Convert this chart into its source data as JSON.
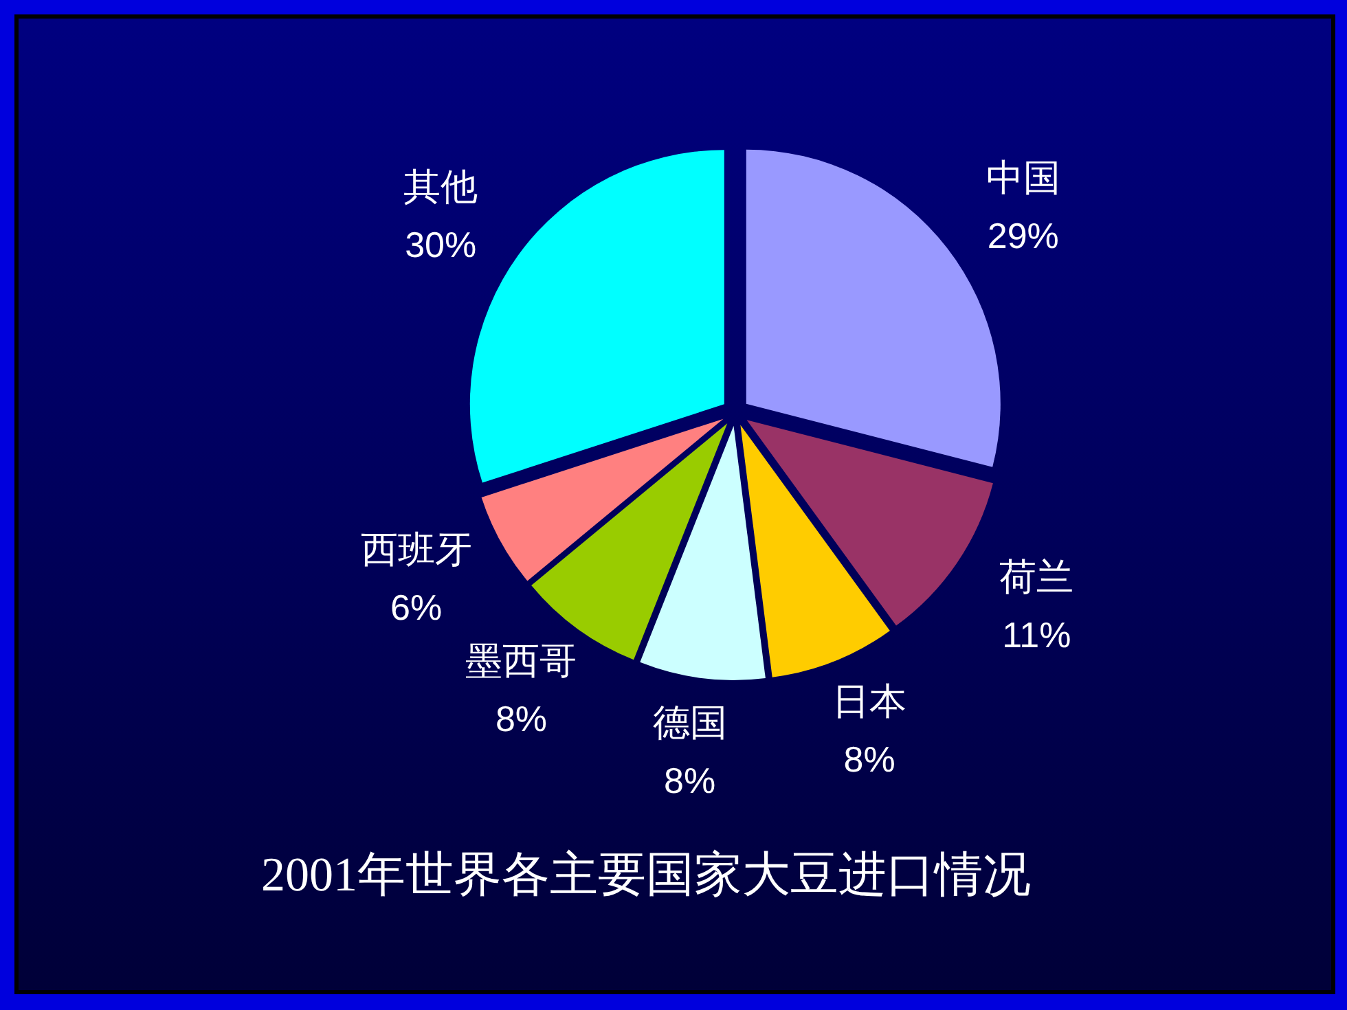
{
  "chart_data": {
    "type": "pie",
    "title": "2001年世界各主要国家大豆进口情况",
    "categories": [
      "中国",
      "荷兰",
      "日本",
      "德国",
      "墨西哥",
      "西班牙",
      "其他"
    ],
    "values": [
      29,
      11,
      8,
      8,
      8,
      6,
      30
    ],
    "colors": [
      "#9999ff",
      "#993366",
      "#ffcc00",
      "#ccffff",
      "#99cc00",
      "#ff8080",
      "#00ffff"
    ],
    "value_labels": [
      "29%",
      "11%",
      "8%",
      "8%",
      "8%",
      "6%",
      "30%"
    ]
  }
}
